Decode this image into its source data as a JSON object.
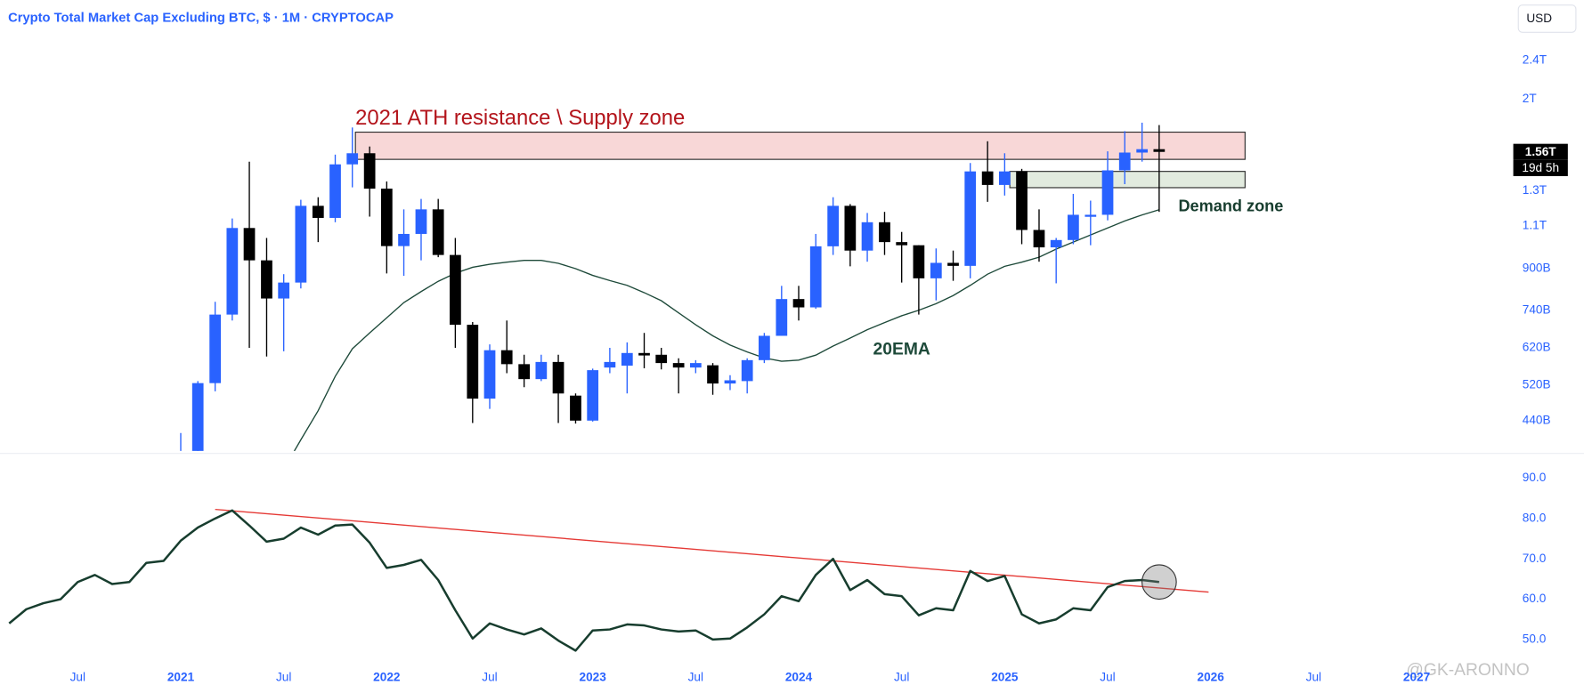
{
  "chart_data": [
    {
      "type": "candlestick",
      "title": "Crypto Total Market Cap Excluding BTC, $ · 1M · CRYPTOCAP",
      "currency": "USD",
      "x": [
        2021,
        2021.083,
        2021.167,
        2021.25,
        2021.333,
        2021.417,
        2021.5,
        2021.583,
        2021.667,
        2021.75,
        2021.833,
        2021.917,
        2022,
        2022.083,
        2022.167,
        2022.25,
        2022.333,
        2022.417,
        2022.5,
        2022.583,
        2022.667,
        2022.75,
        2022.833,
        2022.917,
        2023,
        2023.083,
        2023.167,
        2023.25,
        2023.333,
        2023.417,
        2023.5,
        2023.583,
        2023.667,
        2023.75,
        2023.833,
        2023.917,
        2024,
        2024.083,
        2024.167,
        2024.25,
        2024.333,
        2024.417,
        2024.5,
        2024.583,
        2024.667,
        2024.75,
        2024.833,
        2024.917,
        2025,
        2025.083,
        2025.167,
        2025.25,
        2025.333,
        2025.417,
        2025.5,
        2025.583,
        2025.667,
        2025.75
      ],
      "open": [
        250,
        330,
        525,
        725,
        1090,
        936,
        782,
        843,
        1210,
        1143,
        1471,
        1550,
        1312,
        1001,
        1060,
        1190,
        960,
        691,
        488,
        613,
        574,
        535,
        580,
        495,
        440,
        565,
        570,
        605,
        600,
        577,
        565,
        571,
        524,
        530,
        585,
        656,
        780,
        750,
        1000,
        1210,
        980,
        1120,
        1020,
        1005,
        860,
        925,
        912,
        1423,
        1335,
        1423,
        1080,
        995,
        1030,
        1150,
        1160,
        1430,
        1555,
        1580
      ],
      "high": [
        415,
        530,
        770,
        1140,
        1490,
        1040,
        877,
        1245,
        1260,
        1540,
        1750,
        1600,
        1357,
        1190,
        1250,
        1250,
        1040,
        700,
        630,
        705,
        600,
        600,
        600,
        500,
        562,
        620,
        636,
        665,
        620,
        590,
        585,
        577,
        545,
        590,
        665,
        830,
        830,
        1060,
        1260,
        1220,
        1170,
        1176,
        1070,
        1005,
        990,
        980,
        1480,
        1640,
        1550,
        1440,
        1190,
        1040,
        1280,
        1240,
        1564,
        1720,
        1790,
        1770
      ],
      "low": [
        230,
        300,
        505,
        705,
        620,
        595,
        610,
        820,
        1020,
        1120,
        1320,
        1150,
        880,
        870,
        936,
        950,
        620,
        435,
        465,
        550,
        515,
        530,
        435,
        434,
        438,
        550,
        500,
        563,
        560,
        500,
        550,
        497,
        508,
        500,
        577,
        656,
        705,
        745,
        960,
        910,
        930,
        960,
        843,
        725,
        775,
        850,
        860,
        1233,
        1270,
        1010,
        930,
        840,
        1010,
        1005,
        1130,
        1340,
        1490,
        1176
      ],
      "close": [
        330,
        525,
        725,
        1090,
        936,
        782,
        843,
        1210,
        1143,
        1471,
        1550,
        1312,
        1001,
        1060,
        1190,
        960,
        691,
        488,
        613,
        574,
        535,
        580,
        500,
        440,
        558,
        580,
        605,
        598,
        577,
        565,
        577,
        524,
        532,
        585,
        656,
        780,
        750,
        1000,
        1210,
        980,
        1120,
        1020,
        1005,
        860,
        925,
        912,
        1423,
        1335,
        1423,
        1080,
        995,
        1030,
        1160,
        1160,
        1430,
        1555,
        1580,
        1560
      ],
      "up_color": "#2962ff",
      "down_color": "#000000",
      "xlim": [
        2020.1225,
        2027.43
      ],
      "ylim": [
        381.5,
        3190
      ],
      "log_scale": true,
      "yticks": [
        {
          "value": 2400,
          "label": "2.4T"
        },
        {
          "value": 2000,
          "label": "2T"
        },
        {
          "value": 1300,
          "label": "1.3T"
        },
        {
          "value": 1100,
          "label": "1.1T"
        },
        {
          "value": 900,
          "label": "900B"
        },
        {
          "value": 740,
          "label": "740B"
        },
        {
          "value": 620,
          "label": "620B"
        },
        {
          "value": 520,
          "label": "520B"
        },
        {
          "value": 440,
          "label": "440B"
        }
      ],
      "ema": {
        "name": "20EMA",
        "color": "#1e4a3a",
        "values": [
          null,
          null,
          null,
          null,
          null,
          null,
          350,
          402,
          461,
          542,
          617,
          665,
          714,
          767,
          808,
          848,
          881,
          906,
          919,
          928,
          936,
          936,
          923,
          900,
          872,
          851,
          832,
          804,
          774,
          731,
          691,
          656,
          628,
          608,
          591,
          582,
          585,
          599,
          625,
          649,
          675,
          698,
          721,
          740,
          763,
          793,
          832,
          877,
          910,
          928,
          950,
          987,
          1020,
          1055,
          1090,
          1127,
          1159,
          1188
        ]
      },
      "zones": [
        {
          "label": "2021 ATH resistance \\ Supply zone",
          "x": [
            2021.848,
            2026.167
          ],
          "y": [
            1506,
            1712
          ],
          "color": "#f8d7d7",
          "label_color": "#b3141b"
        },
        {
          "label": "Demand zone",
          "x": [
            2025.025,
            2026.167
          ],
          "y": [
            1318,
            1423
          ],
          "color": "#e2ebdf",
          "label_color": "#173d2e"
        }
      ],
      "last_price": {
        "value": 1560,
        "label": "1.56T",
        "countdown": "19d 5h"
      },
      "watermark": "@GK-ARONNO"
    },
    {
      "type": "line",
      "x": [
        2020.167,
        2020.25,
        2020.333,
        2020.417,
        2020.5,
        2020.583,
        2020.667,
        2020.75,
        2020.833,
        2020.917,
        2021,
        2021.083,
        2021.167,
        2021.25,
        2021.333,
        2021.417,
        2021.5,
        2021.583,
        2021.667,
        2021.75,
        2021.833,
        2021.917,
        2022,
        2022.083,
        2022.167,
        2022.25,
        2022.333,
        2022.417,
        2022.5,
        2022.583,
        2022.667,
        2022.75,
        2022.833,
        2022.917,
        2023,
        2023.083,
        2023.167,
        2023.25,
        2023.333,
        2023.417,
        2023.5,
        2023.583,
        2023.667,
        2023.75,
        2023.833,
        2023.917,
        2024,
        2024.083,
        2024.167,
        2024.25,
        2024.333,
        2024.417,
        2024.5,
        2024.583,
        2024.667,
        2024.75,
        2024.833,
        2024.917,
        2025,
        2025.083,
        2025.167,
        2025.25,
        2025.333,
        2025.417,
        2025.5,
        2025.583,
        2025.667,
        2025.75
      ],
      "values": [
        54.0,
        57.5,
        59.0,
        60.0,
        64.25,
        66.0,
        63.75,
        64.25,
        69.0,
        69.5,
        74.5,
        77.75,
        80.0,
        82.0,
        78.25,
        74.25,
        75.0,
        77.75,
        76.0,
        78.25,
        78.5,
        74.0,
        67.75,
        68.5,
        69.75,
        64.75,
        57.25,
        50.25,
        54.0,
        52.5,
        51.25,
        52.75,
        49.75,
        47.25,
        52.25,
        52.5,
        53.75,
        53.5,
        52.5,
        52.0,
        52.25,
        50.0,
        50.25,
        53.0,
        56.25,
        60.75,
        59.5,
        66.0,
        70.0,
        62.25,
        64.75,
        61.25,
        60.75,
        56.0,
        57.75,
        57.25,
        67.0,
        64.5,
        65.75,
        56.25,
        54.0,
        55.0,
        57.75,
        57.25,
        63.0,
        64.5,
        64.75,
        64.25
      ],
      "color": "#173d2e",
      "xlim": [
        2020.1225,
        2027.43
      ],
      "ylim": [
        44.75,
        95.5
      ],
      "yticks": [
        {
          "value": 90,
          "label": "90.0"
        },
        {
          "value": 80,
          "label": "80.0"
        },
        {
          "value": 70,
          "label": "70.0"
        },
        {
          "value": 60,
          "label": "60.0"
        },
        {
          "value": 50,
          "label": "50.0"
        }
      ],
      "xticks": [
        {
          "value": 2020.5,
          "label": "Jul"
        },
        2021,
        {
          "value": 2021.5,
          "label": "Jul"
        },
        2022,
        {
          "value": 2022.5,
          "label": "Jul"
        },
        2023,
        {
          "value": 2023.5,
          "label": "Jul"
        },
        2024,
        {
          "value": 2024.5,
          "label": "Jul"
        },
        2025,
        {
          "value": 2025.5,
          "label": "Jul"
        },
        2026,
        {
          "value": 2026.5,
          "label": "Jul"
        },
        2027
      ],
      "trendline": {
        "x": [
          2021.167,
          2025.99
        ],
        "values": [
          82.25,
          61.75
        ],
        "color": "#e53935"
      }
    }
  ]
}
